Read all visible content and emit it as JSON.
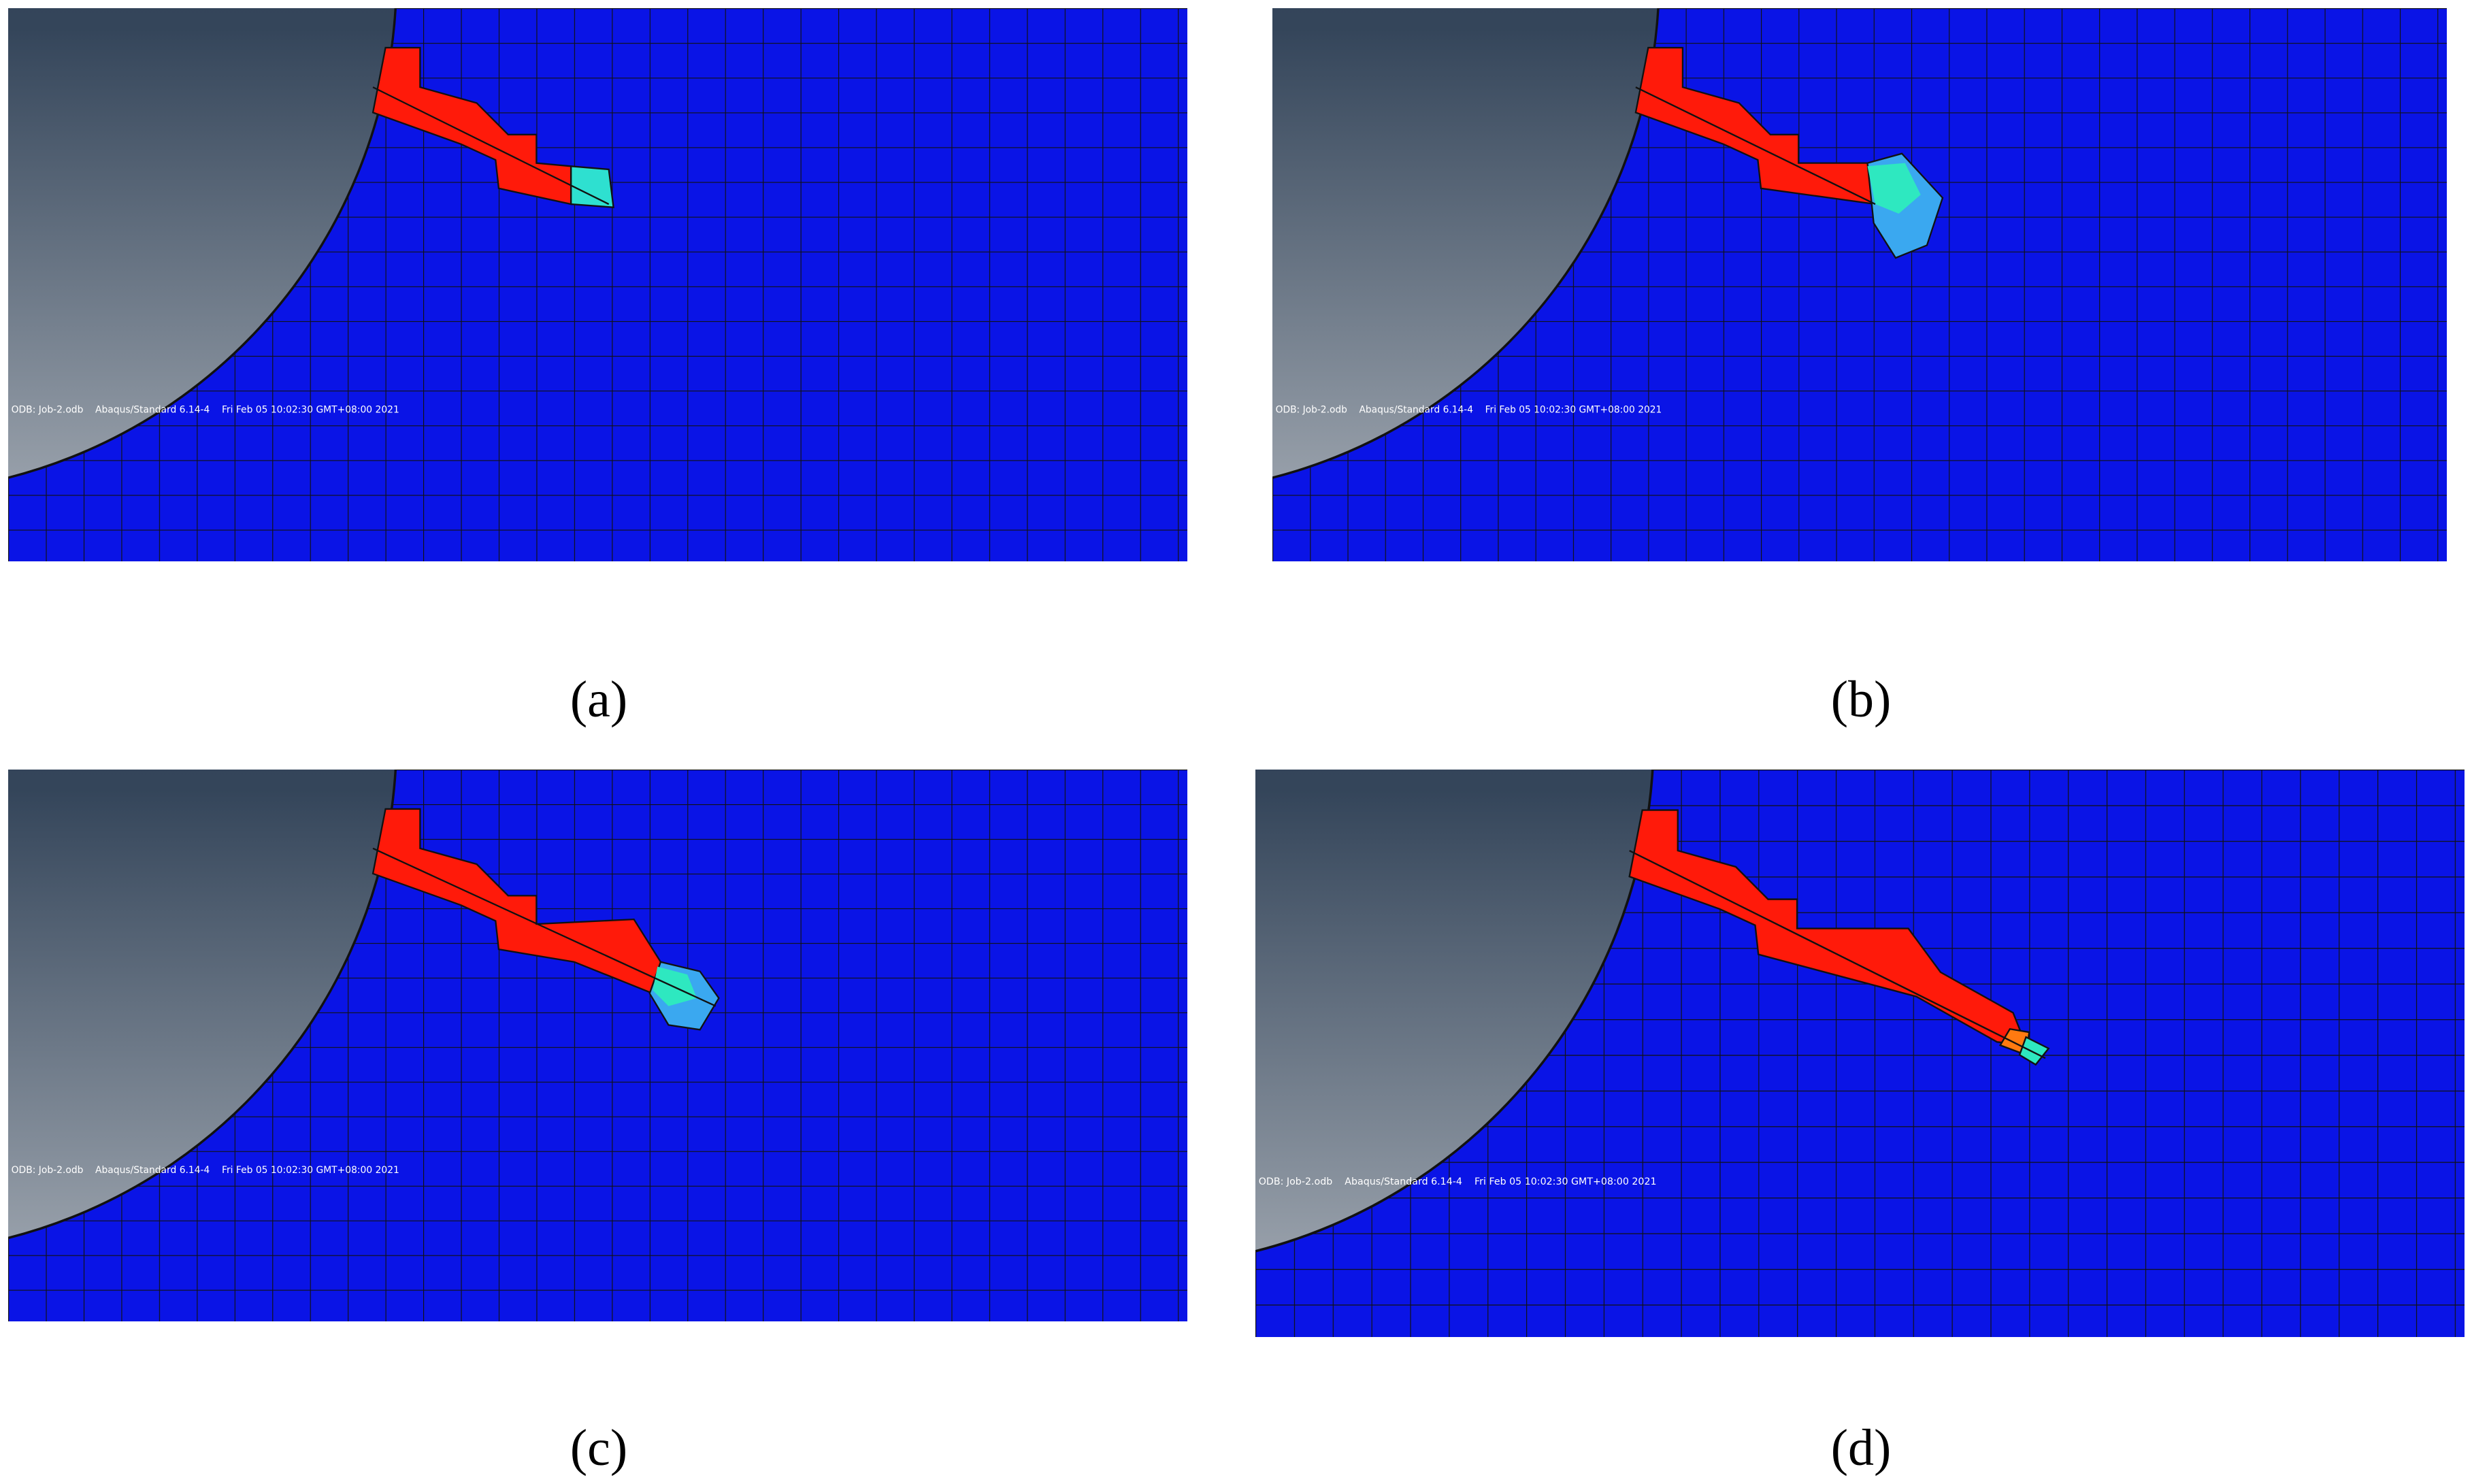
{
  "panels": [
    {
      "label": "(a)",
      "status": "ODB: Job-2.odb    Abaqus/Standard 6.14-4    Fri Feb 05 10:02:30 GMT+08:00 2021"
    },
    {
      "label": "(b)",
      "status": "ODB: Job-2.odb    Abaqus/Standard 6.14-4    Fri Feb 05 10:02:30 GMT+08:00 2021"
    },
    {
      "label": "(c)",
      "status": "ODB: Job-2.odb    Abaqus/Standard 6.14-4    Fri Feb 05 10:02:30 GMT+08:00 2021"
    },
    {
      "label": "(d)",
      "status": "ODB: Job-2.odb    Abaqus/Standard 6.14-4    Fri Feb 05 10:02:30 GMT+08:00 2021"
    }
  ]
}
